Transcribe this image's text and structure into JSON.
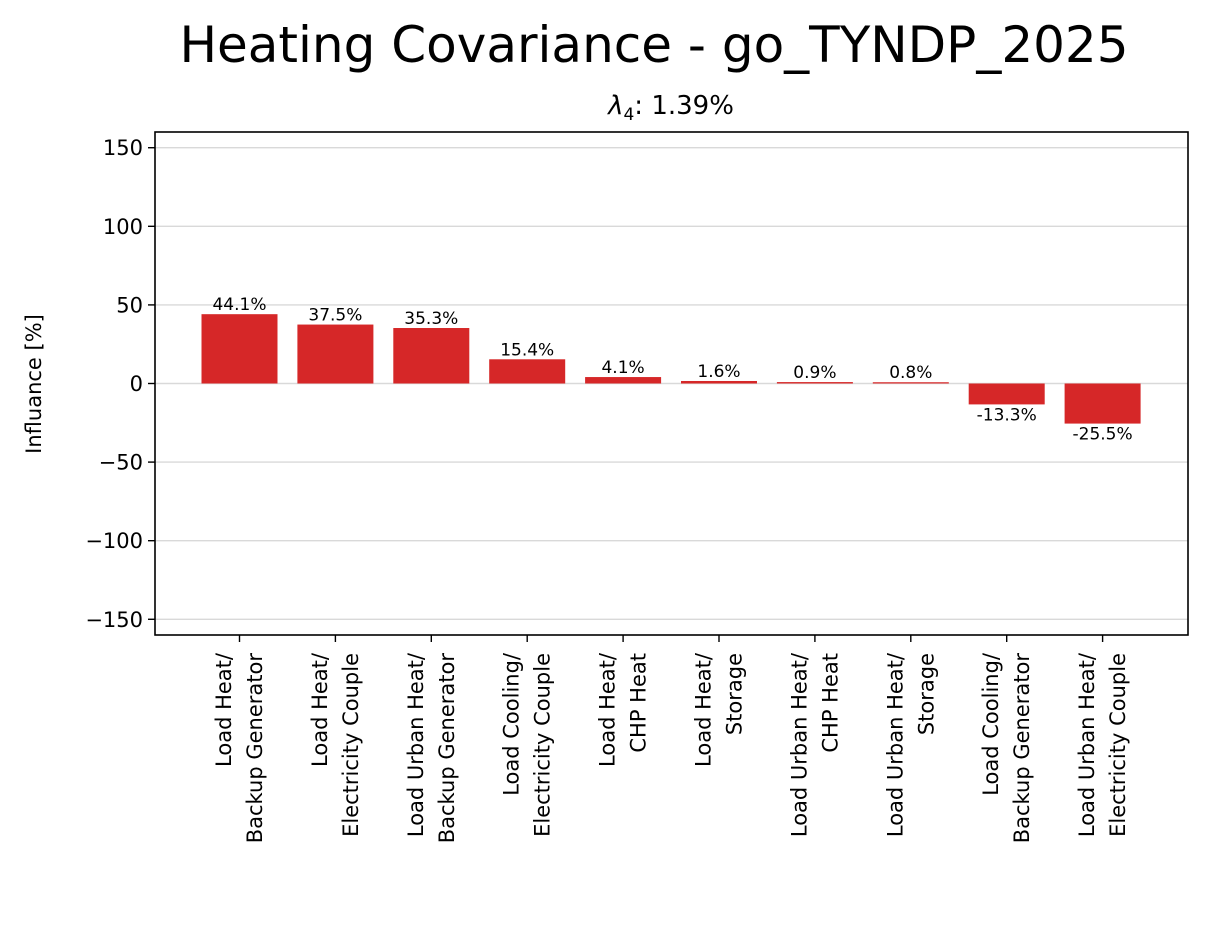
{
  "chart_data": {
    "type": "bar",
    "title": "Heating Covariance - go_TYNDP_2025",
    "subtitle_symbol": "λ",
    "subtitle_subscript": "4",
    "subtitle_value": ": 1.39%",
    "xlabel": "",
    "ylabel": "Influance [%]",
    "ylim": [
      -160,
      160
    ],
    "yticks": [
      150,
      100,
      50,
      0,
      -50,
      -100,
      -150
    ],
    "ytick_labels": [
      "150",
      "100",
      "50",
      "0",
      "−50",
      "−100",
      "−150"
    ],
    "grid": "horizontal",
    "bar_color": "#d62728",
    "categories": [
      [
        "Load Heat/",
        "Backup Generator"
      ],
      [
        "Load Heat/",
        "Electricity Couple"
      ],
      [
        "Load Urban Heat/",
        "Backup Generator"
      ],
      [
        "Load Cooling/",
        "Electricity Couple"
      ],
      [
        "Load Heat/",
        "CHP Heat"
      ],
      [
        "Load Heat/",
        "Storage"
      ],
      [
        "Load Urban Heat/",
        "CHP Heat"
      ],
      [
        "Load Urban Heat/",
        "Storage"
      ],
      [
        "Load Cooling/",
        "Backup Generator"
      ],
      [
        "Load Urban Heat/",
        "Electricity Couple"
      ]
    ],
    "values": [
      44.1,
      37.5,
      35.3,
      15.4,
      4.1,
      1.6,
      0.9,
      0.8,
      -13.3,
      -25.5
    ],
    "value_labels": [
      "44.1%",
      "37.5%",
      "35.3%",
      "15.4%",
      "4.1%",
      "1.6%",
      "0.9%",
      "0.8%",
      "-13.3%",
      "-25.5%"
    ]
  }
}
